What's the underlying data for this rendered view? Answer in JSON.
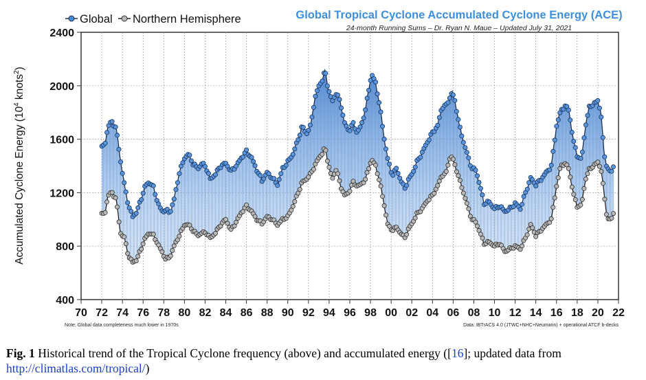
{
  "chart_data": {
    "type": "line",
    "title": "Global Tropical Cyclone Accumulated Cyclone Energy (ACE)",
    "subtitle": "24-month Running Sums – Dr. Ryan N. Maue – Updated July 31, 2021",
    "ylabel_main": "Accumulated Cyclone Energy (10",
    "ylabel_sup": "4",
    "ylabel_tail": " knots",
    "ylabel_sup2": "2",
    "ylabel_close": ")",
    "xlabel": "",
    "ylim": [
      400,
      2400
    ],
    "xlim": [
      70,
      22
    ],
    "yticks": [
      "400",
      "800",
      "1200",
      "1600",
      "2000",
      "2400"
    ],
    "xticks": [
      "70",
      "72",
      "74",
      "76",
      "78",
      "80",
      "82",
      "84",
      "86",
      "88",
      "90",
      "92",
      "94",
      "96",
      "98",
      "00",
      "02",
      "04",
      "06",
      "08",
      "10",
      "12",
      "14",
      "16",
      "18",
      "20",
      "22"
    ],
    "note_left": "Note: Global data completeness much lower in 1970s",
    "note_right": "Data: IBTrACS 4.0 (JTWC+NHC+Neumann) + operational ATCF b-decks",
    "legend_position": "top-left",
    "series": [
      {
        "name": "Global",
        "color": "#3f78c8",
        "points": [
          [
            1972.0,
            1540
          ],
          [
            1972.3,
            1560
          ],
          [
            1972.6,
            1700
          ],
          [
            1973.0,
            1730
          ],
          [
            1973.4,
            1680
          ],
          [
            1973.8,
            1450
          ],
          [
            1974.2,
            1250
          ],
          [
            1974.6,
            1100
          ],
          [
            1975.0,
            1020
          ],
          [
            1975.4,
            1060
          ],
          [
            1975.8,
            1150
          ],
          [
            1976.2,
            1250
          ],
          [
            1976.6,
            1280
          ],
          [
            1977.0,
            1240
          ],
          [
            1977.4,
            1130
          ],
          [
            1977.8,
            1060
          ],
          [
            1978.2,
            1070
          ],
          [
            1978.6,
            1050
          ],
          [
            1979.0,
            1150
          ],
          [
            1979.5,
            1350
          ],
          [
            1980.0,
            1460
          ],
          [
            1980.4,
            1490
          ],
          [
            1980.8,
            1420
          ],
          [
            1981.3,
            1380
          ],
          [
            1981.7,
            1420
          ],
          [
            1982.1,
            1390
          ],
          [
            1982.5,
            1300
          ],
          [
            1983.0,
            1340
          ],
          [
            1983.5,
            1400
          ],
          [
            1984.0,
            1420
          ],
          [
            1984.5,
            1360
          ],
          [
            1985.0,
            1400
          ],
          [
            1985.5,
            1460
          ],
          [
            1986.0,
            1510
          ],
          [
            1986.5,
            1460
          ],
          [
            1987.0,
            1370
          ],
          [
            1987.5,
            1290
          ],
          [
            1988.0,
            1350
          ],
          [
            1988.5,
            1310
          ],
          [
            1989.0,
            1260
          ],
          [
            1989.5,
            1380
          ],
          [
            1990.0,
            1430
          ],
          [
            1990.5,
            1490
          ],
          [
            1991.0,
            1600
          ],
          [
            1991.4,
            1700
          ],
          [
            1991.8,
            1640
          ],
          [
            1992.2,
            1700
          ],
          [
            1992.6,
            1900
          ],
          [
            1993.0,
            2000
          ],
          [
            1993.4,
            2050
          ],
          [
            1993.6,
            2120
          ],
          [
            1993.9,
            1980
          ],
          [
            1994.3,
            1880
          ],
          [
            1994.7,
            1950
          ],
          [
            1995.1,
            1870
          ],
          [
            1995.5,
            1720
          ],
          [
            1995.9,
            1660
          ],
          [
            1996.3,
            1720
          ],
          [
            1996.7,
            1650
          ],
          [
            1997.1,
            1700
          ],
          [
            1997.5,
            1820
          ],
          [
            1997.9,
            2000
          ],
          [
            1998.1,
            2090
          ],
          [
            1998.5,
            2020
          ],
          [
            1998.9,
            1850
          ],
          [
            1999.3,
            1620
          ],
          [
            1999.7,
            1440
          ],
          [
            2000.1,
            1330
          ],
          [
            2000.5,
            1380
          ],
          [
            2000.9,
            1300
          ],
          [
            2001.3,
            1230
          ],
          [
            2001.7,
            1300
          ],
          [
            2002.1,
            1350
          ],
          [
            2002.5,
            1430
          ],
          [
            2003.0,
            1500
          ],
          [
            2003.5,
            1580
          ],
          [
            2004.0,
            1650
          ],
          [
            2004.5,
            1700
          ],
          [
            2004.9,
            1840
          ],
          [
            2005.3,
            1850
          ],
          [
            2005.6,
            1900
          ],
          [
            2005.9,
            1950
          ],
          [
            2006.2,
            1880
          ],
          [
            2006.6,
            1700
          ],
          [
            2007.0,
            1580
          ],
          [
            2007.4,
            1480
          ],
          [
            2007.8,
            1380
          ],
          [
            2008.2,
            1370
          ],
          [
            2008.6,
            1250
          ],
          [
            2009.0,
            1120
          ],
          [
            2009.5,
            1130
          ],
          [
            2010.0,
            1080
          ],
          [
            2010.5,
            1100
          ],
          [
            2011.0,
            1060
          ],
          [
            2011.5,
            1080
          ],
          [
            2012.0,
            1120
          ],
          [
            2012.5,
            1080
          ],
          [
            2013.0,
            1200
          ],
          [
            2013.5,
            1310
          ],
          [
            2014.0,
            1260
          ],
          [
            2014.5,
            1300
          ],
          [
            2015.0,
            1350
          ],
          [
            2015.5,
            1400
          ],
          [
            2016.0,
            1700
          ],
          [
            2016.4,
            1810
          ],
          [
            2016.8,
            1850
          ],
          [
            2017.2,
            1820
          ],
          [
            2017.6,
            1600
          ],
          [
            2018.0,
            1480
          ],
          [
            2018.4,
            1440
          ],
          [
            2018.8,
            1700
          ],
          [
            2019.2,
            1850
          ],
          [
            2019.6,
            1860
          ],
          [
            2020.0,
            1890
          ],
          [
            2020.3,
            1800
          ],
          [
            2020.6,
            1500
          ],
          [
            2020.9,
            1380
          ],
          [
            2021.3,
            1350
          ],
          [
            2021.5,
            1400
          ]
        ]
      },
      {
        "name": "Northern Hemisphere",
        "color": "#a0a0a0",
        "points": [
          [
            1972.0,
            1040
          ],
          [
            1972.3,
            1040
          ],
          [
            1972.6,
            1180
          ],
          [
            1973.0,
            1200
          ],
          [
            1973.4,
            1150
          ],
          [
            1973.8,
            900
          ],
          [
            1974.2,
            860
          ],
          [
            1974.6,
            720
          ],
          [
            1975.0,
            680
          ],
          [
            1975.4,
            700
          ],
          [
            1975.8,
            780
          ],
          [
            1976.2,
            860
          ],
          [
            1976.6,
            900
          ],
          [
            1977.0,
            880
          ],
          [
            1977.4,
            820
          ],
          [
            1977.8,
            760
          ],
          [
            1978.2,
            700
          ],
          [
            1978.6,
            720
          ],
          [
            1979.0,
            800
          ],
          [
            1979.5,
            880
          ],
          [
            1980.0,
            960
          ],
          [
            1980.4,
            960
          ],
          [
            1980.8,
            920
          ],
          [
            1981.3,
            880
          ],
          [
            1981.7,
            900
          ],
          [
            1982.1,
            900
          ],
          [
            1982.5,
            860
          ],
          [
            1983.0,
            900
          ],
          [
            1983.5,
            960
          ],
          [
            1984.0,
            1000
          ],
          [
            1984.5,
            920
          ],
          [
            1985.0,
            980
          ],
          [
            1985.5,
            1050
          ],
          [
            1986.0,
            1100
          ],
          [
            1986.5,
            1060
          ],
          [
            1987.0,
            1000
          ],
          [
            1987.5,
            970
          ],
          [
            1988.0,
            1020
          ],
          [
            1988.5,
            1000
          ],
          [
            1989.0,
            960
          ],
          [
            1989.5,
            1000
          ],
          [
            1990.0,
            1020
          ],
          [
            1990.5,
            1100
          ],
          [
            1991.0,
            1200
          ],
          [
            1991.4,
            1280
          ],
          [
            1991.8,
            1300
          ],
          [
            1992.2,
            1340
          ],
          [
            1992.6,
            1400
          ],
          [
            1993.0,
            1460
          ],
          [
            1993.4,
            1500
          ],
          [
            1993.6,
            1540
          ],
          [
            1993.9,
            1420
          ],
          [
            1994.3,
            1300
          ],
          [
            1994.7,
            1380
          ],
          [
            1995.1,
            1250
          ],
          [
            1995.5,
            1180
          ],
          [
            1995.9,
            1200
          ],
          [
            1996.3,
            1280
          ],
          [
            1996.7,
            1250
          ],
          [
            1997.1,
            1260
          ],
          [
            1997.5,
            1300
          ],
          [
            1997.9,
            1400
          ],
          [
            1998.1,
            1450
          ],
          [
            1998.5,
            1400
          ],
          [
            1998.9,
            1280
          ],
          [
            1999.3,
            1120
          ],
          [
            1999.7,
            950
          ],
          [
            2000.1,
            920
          ],
          [
            2000.5,
            940
          ],
          [
            2000.9,
            900
          ],
          [
            2001.3,
            860
          ],
          [
            2001.7,
            930
          ],
          [
            2002.1,
            980
          ],
          [
            2002.5,
            1040
          ],
          [
            2003.0,
            1080
          ],
          [
            2003.5,
            1140
          ],
          [
            2004.0,
            1180
          ],
          [
            2004.5,
            1250
          ],
          [
            2004.9,
            1330
          ],
          [
            2005.3,
            1340
          ],
          [
            2005.6,
            1450
          ],
          [
            2005.9,
            1470
          ],
          [
            2006.2,
            1400
          ],
          [
            2006.6,
            1300
          ],
          [
            2007.0,
            1200
          ],
          [
            2007.4,
            1100
          ],
          [
            2007.8,
            1000
          ],
          [
            2008.2,
            980
          ],
          [
            2008.6,
            900
          ],
          [
            2009.0,
            820
          ],
          [
            2009.5,
            830
          ],
          [
            2010.0,
            800
          ],
          [
            2010.5,
            820
          ],
          [
            2011.0,
            760
          ],
          [
            2011.5,
            780
          ],
          [
            2012.0,
            800
          ],
          [
            2012.5,
            780
          ],
          [
            2013.0,
            860
          ],
          [
            2013.5,
            960
          ],
          [
            2014.0,
            880
          ],
          [
            2014.5,
            920
          ],
          [
            2015.0,
            960
          ],
          [
            2015.5,
            1000
          ],
          [
            2016.0,
            1250
          ],
          [
            2016.4,
            1400
          ],
          [
            2016.8,
            1420
          ],
          [
            2017.2,
            1380
          ],
          [
            2017.6,
            1200
          ],
          [
            2018.0,
            1100
          ],
          [
            2018.4,
            1100
          ],
          [
            2018.8,
            1300
          ],
          [
            2019.2,
            1380
          ],
          [
            2019.6,
            1400
          ],
          [
            2020.0,
            1430
          ],
          [
            2020.3,
            1380
          ],
          [
            2020.6,
            1200
          ],
          [
            2020.9,
            1000
          ],
          [
            2021.3,
            1000
          ],
          [
            2021.5,
            1050
          ]
        ]
      }
    ]
  },
  "caption": {
    "fig_label": "Fig. 1",
    "text": "  Historical trend of the Tropical Cyclone frequency (above) and accumulated energy ([",
    "ref": "16",
    "text2": "]; updated data from ",
    "link": "http://climatlas.com/tropical/",
    "end": ")"
  }
}
